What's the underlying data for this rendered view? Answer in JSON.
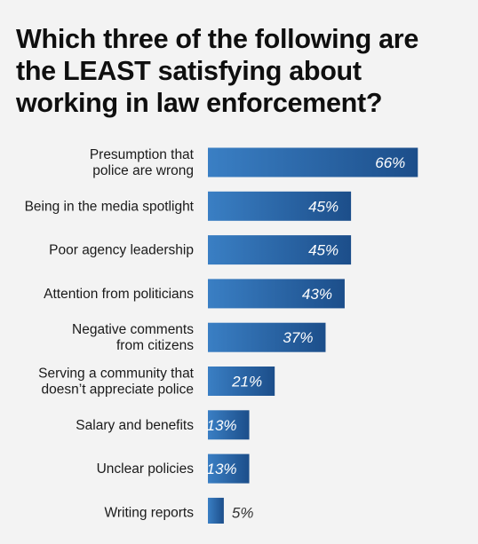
{
  "chart_data": {
    "type": "bar",
    "orientation": "horizontal",
    "title": "Which three of the following are the LEAST satisfying about working in law enforcement?",
    "categories": [
      [
        "Presumption that",
        "police are wrong"
      ],
      [
        "Being in the media spotlight"
      ],
      [
        "Poor agency leadership"
      ],
      [
        "Attention from politicians"
      ],
      [
        "Negative comments",
        "from citizens"
      ],
      [
        "Serving a community that",
        "doesn’t appreciate police"
      ],
      [
        "Salary and benefits"
      ],
      [
        "Unclear policies"
      ],
      [
        "Writing reports"
      ]
    ],
    "values": [
      66,
      45,
      45,
      43,
      37,
      21,
      13,
      13,
      5
    ],
    "value_labels": [
      "66%",
      "45%",
      "45%",
      "43%",
      "37%",
      "21%",
      "13%",
      "13%",
      "5%"
    ],
    "unit": "%",
    "xlim": [
      0,
      100
    ],
    "colors": {
      "bar_light": "#3a7fc4",
      "bar_dark": "#1c4e8a",
      "label_inside": "#ffffff",
      "label_outside": "#333333"
    }
  }
}
